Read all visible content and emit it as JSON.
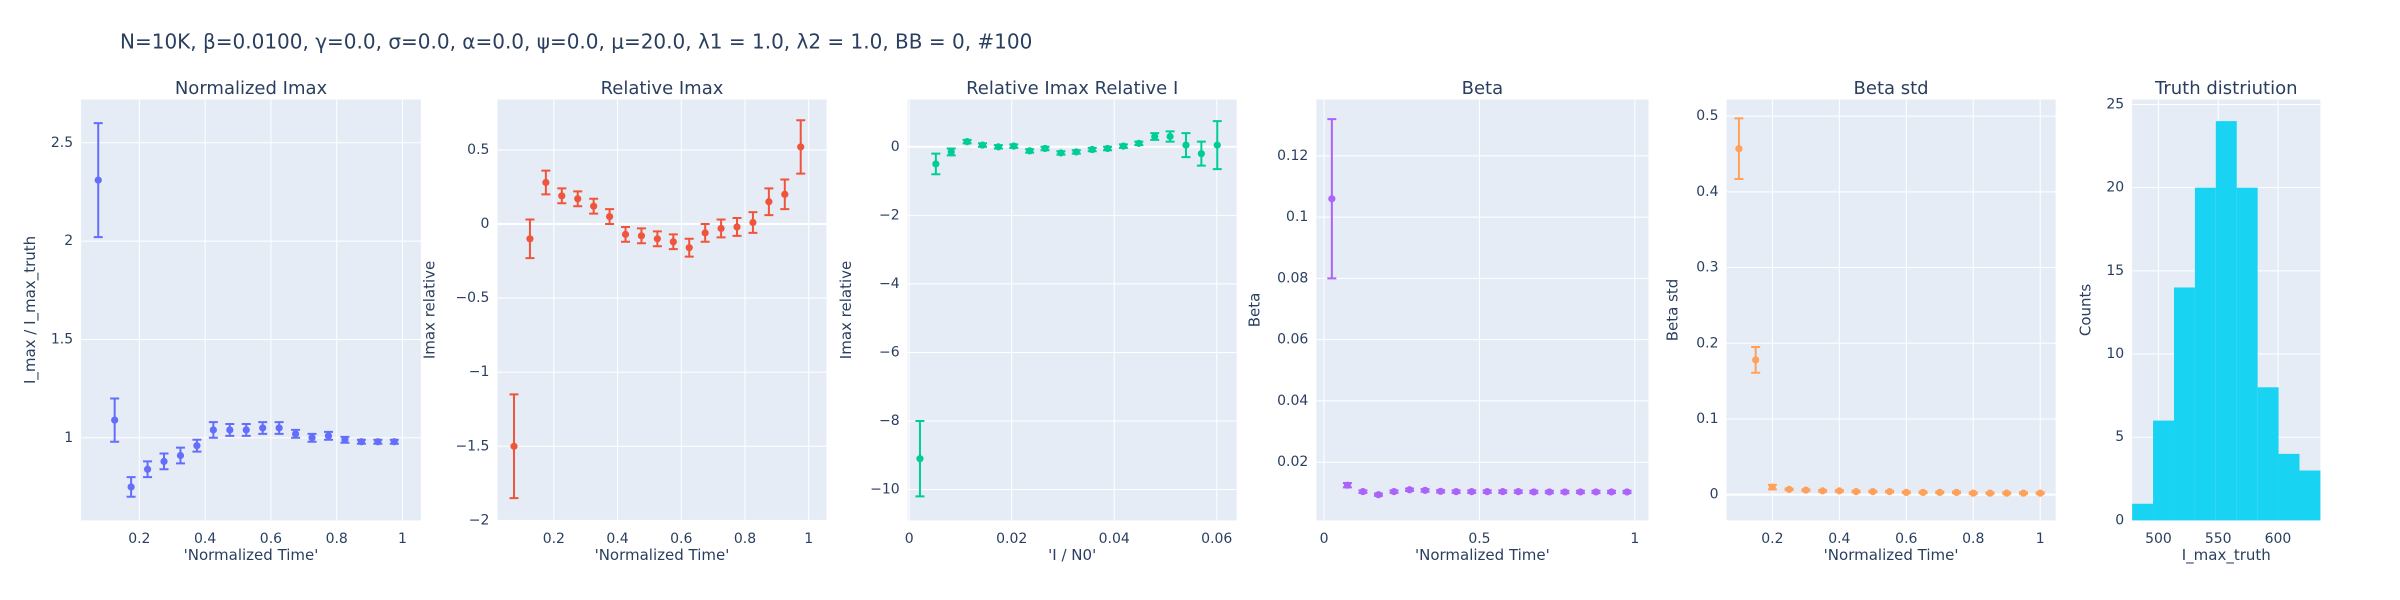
{
  "title": "N=10K, β=0.0100, γ=0.0, σ=0.0,  α=0.0, ψ=0.0, μ=20.0, λ1 = 1.0, λ2 = 1.0, BB = 0, #100",
  "chart_data": [
    {
      "type": "scatter",
      "title": "Normalized Imax",
      "x_label": "'Normalized Time'",
      "y_label": "I_max / I_max_truth",
      "color": "#636efa",
      "grid": true,
      "x": [
        0.075,
        0.125,
        0.175,
        0.225,
        0.275,
        0.325,
        0.375,
        0.425,
        0.475,
        0.525,
        0.575,
        0.625,
        0.675,
        0.725,
        0.775,
        0.825,
        0.875,
        0.925,
        0.975
      ],
      "values": [
        2.31,
        1.09,
        0.75,
        0.84,
        0.88,
        0.91,
        0.96,
        1.04,
        1.04,
        1.04,
        1.05,
        1.05,
        1.02,
        1.0,
        1.01,
        0.99,
        0.98,
        0.98,
        0.98
      ],
      "errors": [
        0.29,
        0.11,
        0.05,
        0.04,
        0.04,
        0.04,
        0.03,
        0.04,
        0.03,
        0.03,
        0.03,
        0.03,
        0.02,
        0.02,
        0.02,
        0.015,
        0.01,
        0.01,
        0.01
      ],
      "xlim": [
        0.023,
        1.056
      ],
      "ylim": [
        0.58,
        2.72
      ],
      "xticks": [
        0.2,
        0.4,
        0.6,
        0.8,
        1
      ],
      "yticks": [
        1,
        1.5,
        2,
        2.5
      ]
    },
    {
      "type": "scatter",
      "title": "Relative Imax",
      "x_label": "'Normalized Time'",
      "y_label": "Imax relative",
      "color": "#EF553B",
      "grid": true,
      "x": [
        0.075,
        0.125,
        0.175,
        0.225,
        0.275,
        0.325,
        0.375,
        0.425,
        0.475,
        0.525,
        0.575,
        0.625,
        0.675,
        0.725,
        0.775,
        0.825,
        0.875,
        0.925,
        0.975
      ],
      "values": [
        -1.5,
        -0.1,
        0.28,
        0.19,
        0.17,
        0.12,
        0.05,
        -0.07,
        -0.08,
        -0.1,
        -0.12,
        -0.16,
        -0.06,
        -0.03,
        -0.02,
        0.01,
        0.15,
        0.2,
        0.52
      ],
      "errors": [
        0.35,
        0.13,
        0.08,
        0.05,
        0.05,
        0.05,
        0.05,
        0.05,
        0.05,
        0.05,
        0.05,
        0.06,
        0.06,
        0.06,
        0.06,
        0.07,
        0.09,
        0.1,
        0.18
      ],
      "xlim": [
        0.023,
        1.056
      ],
      "ylim": [
        -2.0,
        0.84
      ],
      "xticks": [
        0.2,
        0.4,
        0.6,
        0.8,
        1
      ],
      "yticks": [
        {
          "value": -2,
          "label": "−2"
        },
        {
          "value": -1.5,
          "label": "−1.5"
        },
        {
          "value": -1,
          "label": "−1"
        },
        {
          "value": -0.5,
          "label": "−0.5"
        },
        0,
        0.5
      ]
    },
    {
      "type": "scatter",
      "title": "Relative Imax Relative I",
      "x_label": "'I / N0'",
      "y_label": "Imax relative",
      "color": "#00cc96",
      "grid": true,
      "x": [
        0.0021,
        0.0052,
        0.0082,
        0.0113,
        0.0143,
        0.0174,
        0.0204,
        0.0235,
        0.0265,
        0.0296,
        0.0326,
        0.0357,
        0.0387,
        0.0418,
        0.0448,
        0.0479,
        0.0509,
        0.054,
        0.057,
        0.0601
      ],
      "values": [
        -9.1,
        -0.5,
        -0.15,
        0.15,
        0.05,
        0,
        0.02,
        -0.12,
        -0.05,
        -0.18,
        -0.15,
        -0.08,
        -0.05,
        0.02,
        0.1,
        0.3,
        0.3,
        0.05,
        -0.2,
        0.05
      ],
      "errors": [
        1.1,
        0.3,
        0.1,
        0.05,
        0.05,
        0.05,
        0.05,
        0.05,
        0.05,
        0.05,
        0.05,
        0.05,
        0.05,
        0.05,
        0.05,
        0.1,
        0.15,
        0.35,
        0.35,
        0.7
      ],
      "xlim": [
        -0.0003,
        0.0639
      ],
      "ylim": [
        -10.9,
        1.38
      ],
      "xticks": [
        0,
        0.02,
        0.04,
        0.06
      ],
      "yticks": [
        {
          "value": -10,
          "label": "−10"
        },
        {
          "value": -8,
          "label": "−8"
        },
        {
          "value": -6,
          "label": "−6"
        },
        {
          "value": -4,
          "label": "−4"
        },
        {
          "value": -2,
          "label": "−2"
        },
        0
      ]
    },
    {
      "type": "scatter",
      "title": "Beta",
      "x_label": "'Normalized Time'",
      "y_label": "Beta",
      "color": "#ab63fa",
      "grid": true,
      "x": [
        0.025,
        0.075,
        0.125,
        0.175,
        0.225,
        0.275,
        0.325,
        0.375,
        0.425,
        0.475,
        0.525,
        0.575,
        0.625,
        0.675,
        0.725,
        0.775,
        0.825,
        0.875,
        0.925,
        0.975
      ],
      "values": [
        0.106,
        0.0125,
        0.0104,
        0.0094,
        0.0104,
        0.011,
        0.0108,
        0.0105,
        0.0104,
        0.0104,
        0.0104,
        0.0104,
        0.0104,
        0.0103,
        0.0103,
        0.0103,
        0.0103,
        0.0103,
        0.0103,
        0.0103
      ],
      "errors": [
        0.026,
        0.0007,
        0.0004,
        0.0004,
        0.0004,
        0.0004,
        0.0004,
        0.0004,
        0.0004,
        0.0004,
        0.0004,
        0.0004,
        0.0004,
        0.0004,
        0.0004,
        0.0004,
        0.0004,
        0.0004,
        0.0004,
        0.0004
      ],
      "xlim": [
        -0.025,
        1.044
      ],
      "ylim": [
        0.001,
        0.1384
      ],
      "xticks": [
        0,
        0.5,
        1
      ],
      "yticks": [
        0.02,
        0.04,
        0.06,
        0.08,
        0.1,
        0.12
      ]
    },
    {
      "type": "scatter",
      "title": "Beta std",
      "x_label": "'Normalized Time'",
      "y_label": "Beta std",
      "color": "#FFA15A",
      "grid": true,
      "x": [
        0.1,
        0.15,
        0.2,
        0.25,
        0.3,
        0.35,
        0.4,
        0.45,
        0.5,
        0.55,
        0.6,
        0.65,
        0.7,
        0.75,
        0.8,
        0.85,
        0.9,
        0.95,
        1.0
      ],
      "values": [
        0.457,
        0.178,
        0.01,
        0.007,
        0.006,
        0.005,
        0.005,
        0.004,
        0.004,
        0.004,
        0.003,
        0.003,
        0.003,
        0.003,
        0.002,
        0.002,
        0.002,
        0.002,
        0.002
      ],
      "errors": [
        0.04,
        0.017,
        0.003,
        0.001,
        0.001,
        0.001,
        0.001,
        0.001,
        0.001,
        0.001,
        0.001,
        0.001,
        0.001,
        0.001,
        0.001,
        0.001,
        0.001,
        0.001,
        0.001
      ],
      "xlim": [
        0.063,
        1.046
      ],
      "ylim": [
        -0.034,
        0.522
      ],
      "xticks": [
        0.2,
        0.4,
        0.6,
        0.8,
        1
      ],
      "yticks": [
        0,
        0.1,
        0.2,
        0.3,
        0.4,
        0.5
      ]
    },
    {
      "type": "histogram",
      "title": "Truth distriution",
      "x_label": "I_max_truth",
      "y_label": "Counts",
      "color": "#19d3f3",
      "grid": true,
      "bins": [
        478,
        495.5,
        513,
        530.5,
        548,
        565.5,
        583,
        600.5,
        618,
        635.5
      ],
      "values": [
        1,
        6,
        14,
        20,
        24,
        20,
        8,
        4,
        3
      ],
      "xlim": [
        478,
        635.5
      ],
      "ylim": [
        0,
        25.3
      ],
      "xticks": [
        500,
        550,
        600
      ],
      "yticks": [
        0,
        5,
        10,
        15,
        20,
        25
      ]
    }
  ]
}
